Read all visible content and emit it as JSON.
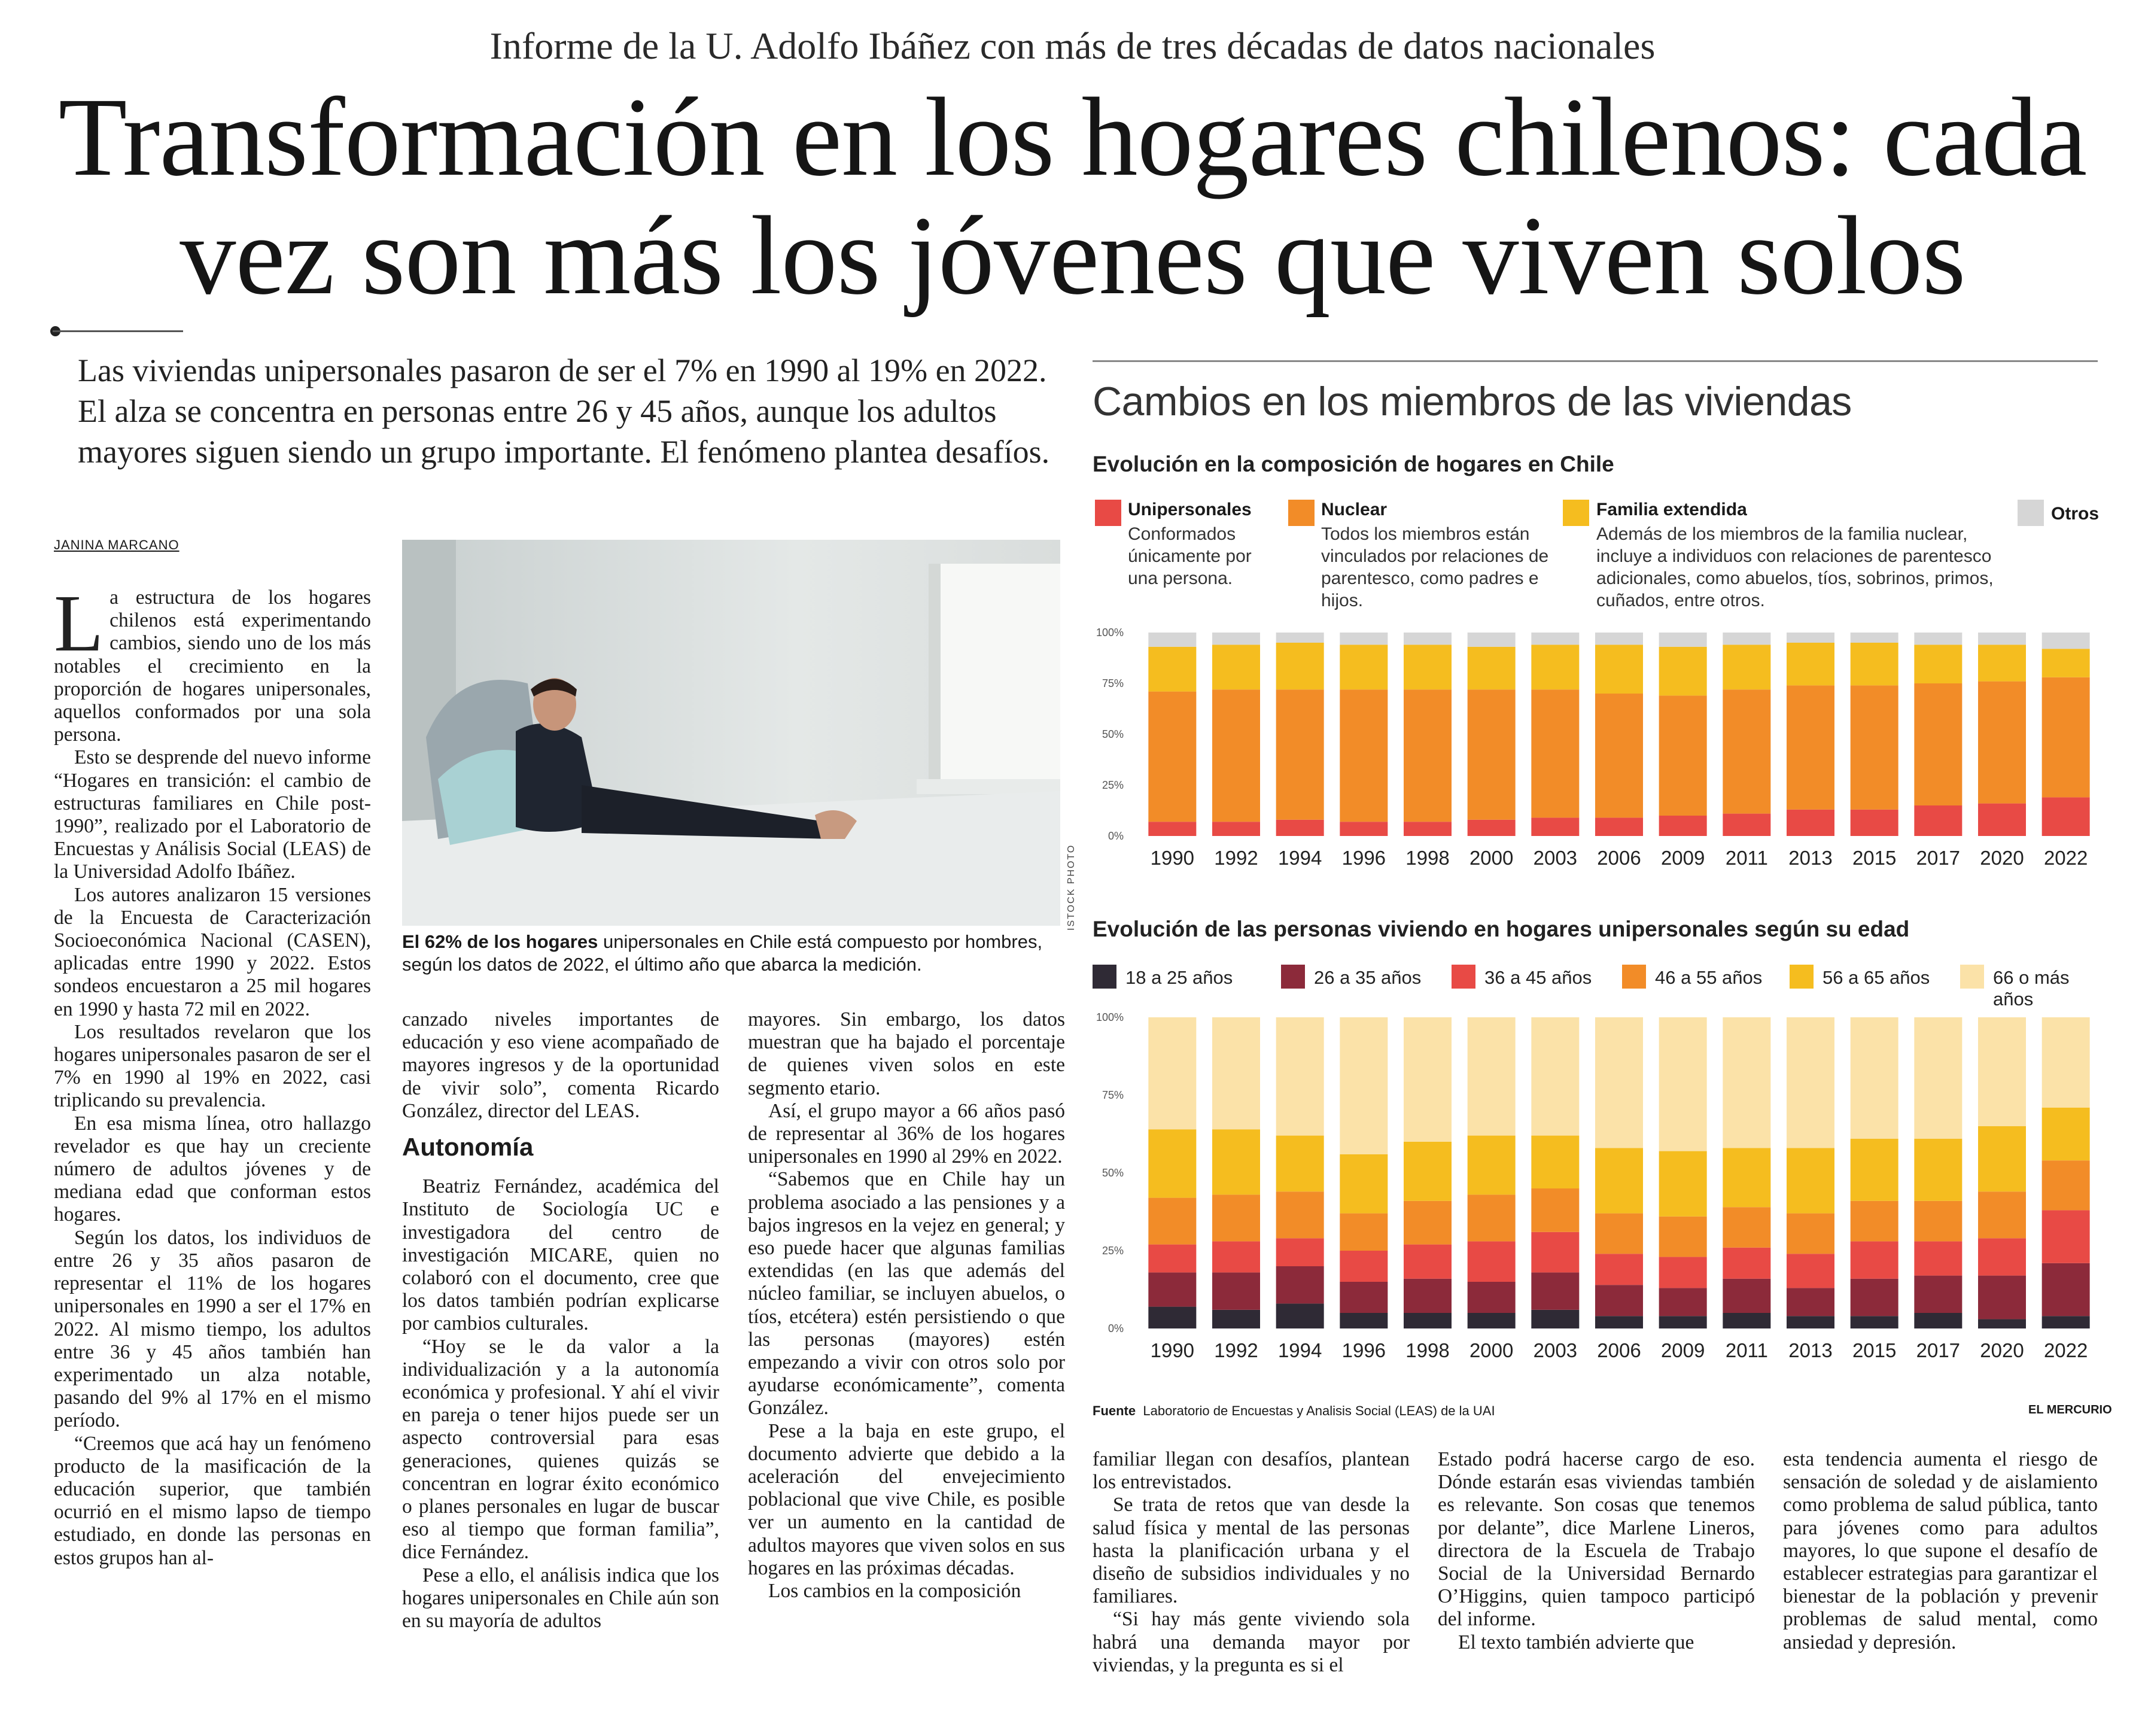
{
  "kicker": "Informe de la U. Adolfo Ibáñez con más de tres décadas de datos nacionales",
  "headline_line1": "Transformación en los hogares chilenos: cada",
  "headline_line2": "vez son más los jóvenes que viven solos",
  "deck": "Las viviendas unipersonales pasaron de ser el 7% en 1990 al 19% en 2022. El alza se concentra en personas entre 26 y 45 años, aunque los adultos mayores siguen siendo un grupo importante. El fenómeno plantea desafíos.",
  "byline": "JANINA MARCANO",
  "photo_credit": "ISTOCK PHOTO",
  "caption_bold": "El 62% de los hogares",
  "caption_rest": " unipersonales en Chile está compuesto por hombres, según los datos de 2022, el último año que abarca la medición.",
  "col1": {
    "dropcap": "L",
    "p1": "a estructura de los hogares chilenos está experimentando cambios, siendo uno de los más notables el crecimiento en la proporción de hogares unipersonales, aquellos conformados por una sola persona.",
    "p2": "Esto se desprende del nuevo informe “Hogares en transición: el cambio de estructuras familiares en Chile post-1990”, realizado por el Laboratorio de Encuestas y Análisis Social (LEAS) de la Universidad Adolfo Ibáñez.",
    "p3": "Los autores analizaron 15 versiones de la Encuesta de Caracterización Socioeconómica Nacional (CASEN), aplicadas entre 1990 y 2022. Estos sondeos encuestaron a 25 mil hogares en 1990 y hasta 72 mil en 2022.",
    "p4": "Los resultados revelaron que los hogares unipersonales pasaron de ser el 7% en 1990 al 19% en 2022, casi triplicando su prevalencia.",
    "p5": "En esa misma línea, otro hallazgo revelador es que hay un creciente número de adultos jóvenes y de mediana edad que conforman estos hogares.",
    "p6": "Según los datos, los individuos de entre 26 y 35 años pasaron de representar el 11% de los hogares unipersonales en 1990 a ser el 17% en 2022. Al mismo tiempo, los adultos entre 36 y 45 años también han experimentado un alza notable, pasando del 9% al 17% en el mismo período.",
    "p7": "“Creemos que acá hay un fenómeno producto de la masificación de la educación superior, que también ocurrió en el mismo lapso de tiempo estudiado, en donde las personas en estos grupos han al-"
  },
  "col2": {
    "p1": "canzado niveles importantes de educación y eso viene acompañado de mayores ingresos y de la oportunidad de vivir solo”, comenta Ricardo González, director del LEAS.",
    "subhead": "Autonomía",
    "p2": "Beatriz Fernández, académica del Instituto de Sociología UC e investigadora del centro de investigación MICARE, quien no colaboró con el documento, cree que los datos también podrían explicarse por cambios culturales.",
    "p3": "“Hoy se le da valor a la individualización y a la autonomía económica y profesional. Y ahí el vivir en pareja o tener hijos puede ser un aspecto controversial para esas generaciones, quienes quizás se concentran en lograr éxito económico o planes personales en lugar de buscar eso al tiempo que forman familia”, dice Fernández.",
    "p4": "Pese a ello, el análisis indica que los hogares unipersonales en Chile aún son en su mayoría de adultos"
  },
  "col3": {
    "p1": "mayores. Sin embargo, los datos muestran que ha bajado el porcentaje de quienes viven solos en este segmento etario.",
    "p2": "Así, el grupo mayor a 66 años pasó de representar al 36% de los hogares unipersonales en 1990 al 29% en 2022.",
    "p3": "“Sabemos que en Chile hay un problema asociado a las pensiones y a bajos ingresos en la vejez en general; y eso puede hacer que algunas familias extendidas (en las que además del núcleo familiar, se incluyen abuelos, o tíos, etcétera) estén persistiendo o que las personas (mayores) estén empezando a vivir con otros solo por ayudarse económicamente”, comenta González.",
    "p4": "Pese a la baja en este grupo, el documento advierte que debido a la aceleración del envejecimiento poblacional que vive Chile, es posible ver un aumento en la cantidad de adultos mayores que viven solos en sus hogares en las próximas décadas.",
    "p5": "Los cambios en la composición"
  },
  "col4": {
    "p1": "familiar llegan con desafíos, plantean los entrevistados.",
    "p2": "Se trata de retos que van desde la salud física y mental de las personas hasta la planificación urbana y el diseño de subsidios individuales y no familiares.",
    "p3": "“Si hay más gente viviendo sola habrá una demanda mayor por viviendas, y la pregunta es si el"
  },
  "col5": {
    "p1": "Estado podrá hacerse cargo de eso. Dónde estarán esas viviendas también es relevante. Son cosas que tenemos por delante”, dice Marlene Lineros, directora de la Escuela de Trabajo Social de la Universidad Bernardo O’Higgins, quien tampoco participó del informe.",
    "p2": "El texto también advierte que"
  },
  "col6": {
    "p1": "esta tendencia aumenta el riesgo de sensación de soledad y de aislamiento como problema de salud pública, tanto para jóvenes como para adultos mayores, lo que supone el desafío de establecer estrategias para garantizar el bienestar de la población y prevenir problemas de salud mental, como ansiedad y depresión."
  },
  "graphic": {
    "title": "Cambios en los miembros de las viviendas",
    "source_label": "Fuente",
    "source_text": "Laboratorio de Encuestas y Analisis Social (LEAS) de la UAI",
    "newspaper": "EL MERCURIO"
  },
  "legend1": [
    {
      "name": "Unipersonales",
      "desc": "Conformados únicamente por una persona.",
      "color": "#e84a45"
    },
    {
      "name": "Nuclear",
      "desc": "Todos los miembros están vinculados por relaciones de parentesco, como padres e hijos.",
      "color": "#f28c28"
    },
    {
      "name": "Familia extendida",
      "desc": "Además de los miembros de la familia nuclear, incluye a individuos con relaciones de parentesco adicionales, como abuelos, tíos, sobrinos, primos, cuñados, entre otros.",
      "color": "#f5bd1f"
    },
    {
      "name": "Otros",
      "desc": "",
      "color": "#d6d6d6"
    }
  ],
  "legend2": [
    {
      "name": "18 a 25 años",
      "color": "#2f2a35"
    },
    {
      "name": "26 a 35 años",
      "color": "#8c2a3a"
    },
    {
      "name": "36 a 45 años",
      "color": "#e84a45"
    },
    {
      "name": "46 a 55 años",
      "color": "#f28c28"
    },
    {
      "name": "56 a 65 años",
      "color": "#f5bd1f"
    },
    {
      "name": "66 o más años",
      "color": "#fbe2a8"
    }
  ],
  "chart_data": [
    {
      "type": "bar",
      "stacked": true,
      "title": "Evolución en la composición de hogares en Chile",
      "categories": [
        "1990",
        "1992",
        "1994",
        "1996",
        "1998",
        "2000",
        "2003",
        "2006",
        "2009",
        "2011",
        "2013",
        "2015",
        "2017",
        "2020",
        "2022"
      ],
      "yticks": [
        "0%",
        "25%",
        "50%",
        "75%",
        "100%"
      ],
      "ylim": [
        0,
        100
      ],
      "grid": false,
      "series": [
        {
          "name": "Unipersonales",
          "color": "#e84a45",
          "values": [
            7,
            7,
            8,
            7,
            7,
            8,
            9,
            9,
            10,
            11,
            13,
            13,
            15,
            16,
            19
          ]
        },
        {
          "name": "Nuclear",
          "color": "#f28c28",
          "values": [
            64,
            65,
            64,
            65,
            65,
            64,
            63,
            61,
            59,
            61,
            61,
            61,
            60,
            60,
            59
          ]
        },
        {
          "name": "Familia extendida",
          "color": "#f5bd1f",
          "values": [
            22,
            22,
            23,
            22,
            22,
            21,
            22,
            24,
            24,
            22,
            21,
            21,
            19,
            18,
            14
          ]
        },
        {
          "name": "Otros",
          "color": "#d6d6d6",
          "values": [
            7,
            6,
            5,
            6,
            6,
            7,
            6,
            6,
            7,
            6,
            5,
            5,
            6,
            6,
            8
          ]
        }
      ]
    },
    {
      "type": "bar",
      "stacked": true,
      "title": "Evolución de las personas viviendo en hogares unipersonales según su edad",
      "categories": [
        "1990",
        "1992",
        "1994",
        "1996",
        "1998",
        "2000",
        "2003",
        "2006",
        "2009",
        "2011",
        "2013",
        "2015",
        "2017",
        "2020",
        "2022"
      ],
      "yticks": [
        "0%",
        "25%",
        "50%",
        "75%",
        "100%"
      ],
      "ylim": [
        0,
        100
      ],
      "grid": false,
      "series": [
        {
          "name": "18 a 25 años",
          "color": "#2f2a35",
          "values": [
            7,
            6,
            8,
            5,
            5,
            5,
            6,
            4,
            4,
            5,
            4,
            4,
            5,
            3,
            4
          ]
        },
        {
          "name": "26 a 35 años",
          "color": "#8c2a3a",
          "values": [
            11,
            12,
            12,
            10,
            11,
            10,
            12,
            10,
            9,
            11,
            9,
            12,
            12,
            14,
            17
          ]
        },
        {
          "name": "36 a 45 años",
          "color": "#e84a45",
          "values": [
            9,
            10,
            9,
            10,
            11,
            13,
            13,
            10,
            10,
            10,
            11,
            12,
            11,
            12,
            17
          ]
        },
        {
          "name": "46 a 55 años",
          "color": "#f28c28",
          "values": [
            15,
            15,
            15,
            12,
            14,
            15,
            14,
            13,
            13,
            13,
            13,
            13,
            13,
            15,
            16
          ]
        },
        {
          "name": "56 a 65 años",
          "color": "#f5bd1f",
          "values": [
            22,
            21,
            18,
            19,
            19,
            19,
            17,
            21,
            21,
            19,
            21,
            20,
            20,
            21,
            17
          ]
        },
        {
          "name": "66 o más años",
          "color": "#fbe2a8",
          "values": [
            36,
            36,
            38,
            44,
            40,
            38,
            38,
            42,
            43,
            42,
            42,
            39,
            39,
            35,
            29
          ]
        }
      ]
    }
  ]
}
